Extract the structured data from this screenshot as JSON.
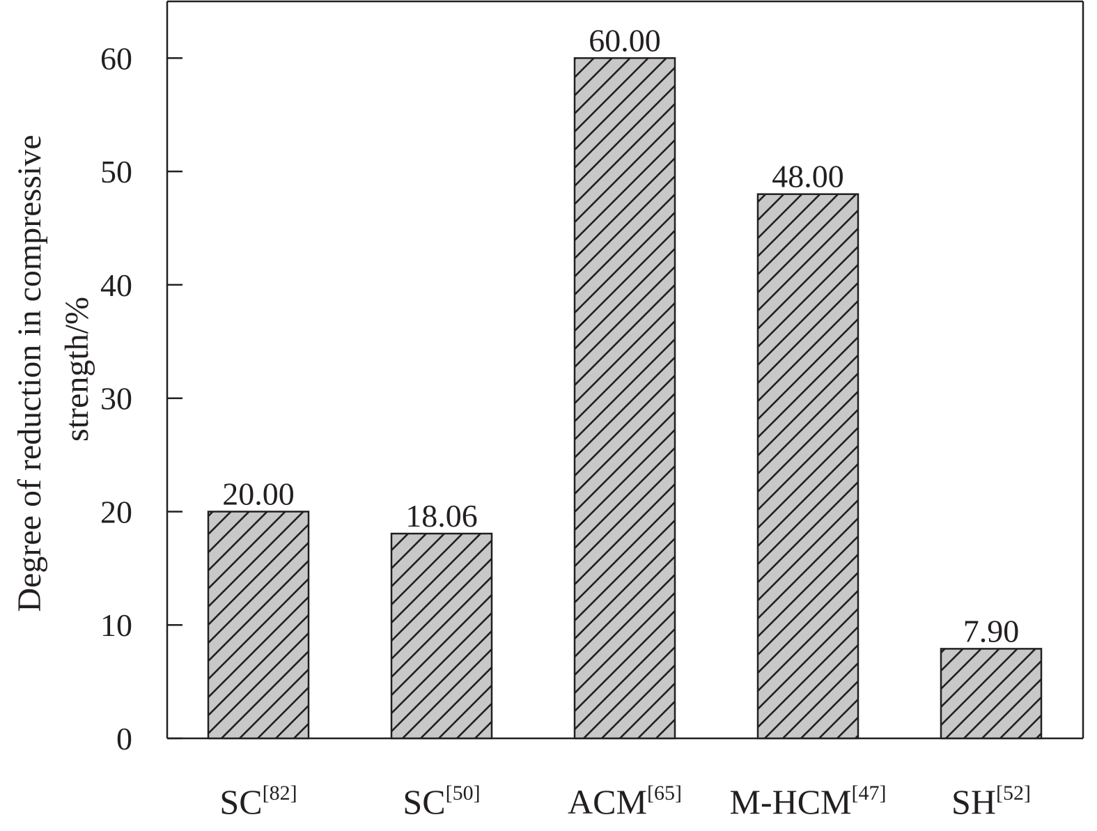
{
  "chart_data": {
    "type": "bar",
    "title": "",
    "xlabel": "",
    "ylabel_lines": [
      "Degree of reduction in compressive",
      "strength/%"
    ],
    "ylim": [
      0,
      65
    ],
    "yticks": [
      0,
      10,
      20,
      30,
      40,
      50,
      60
    ],
    "yticks_labels": [
      "0",
      "10",
      "20",
      "30",
      "40",
      "50",
      "60"
    ],
    "categories": [
      {
        "base": "SC",
        "ref": "[82]"
      },
      {
        "base": "SC",
        "ref": "[50]"
      },
      {
        "base": "ACM",
        "ref": "[65]"
      },
      {
        "base": "M-HCM",
        "ref": "[47]"
      },
      {
        "base": "SH",
        "ref": "[52]"
      }
    ],
    "values": [
      20.0,
      18.06,
      60.0,
      48.0,
      7.9
    ],
    "value_labels": [
      "20.00",
      "18.06",
      "60.00",
      "48.00",
      "7.90"
    ],
    "bar_fill": "#c8c8c8",
    "bar_pattern": "diagonal-hatch",
    "stroke_color": "#231f20",
    "grid": false,
    "legend": "none"
  }
}
